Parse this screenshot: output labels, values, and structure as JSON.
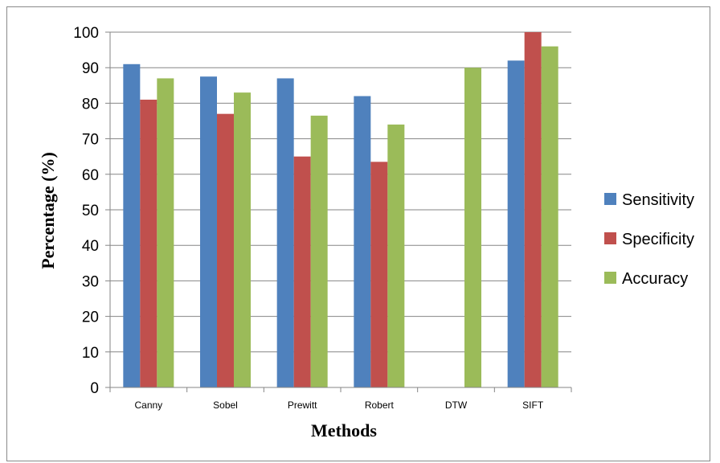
{
  "chart_data": {
    "type": "bar",
    "title": "",
    "xlabel": "Methods",
    "ylabel": "Percentage (%)",
    "ylim": [
      0,
      100
    ],
    "yticks": [
      0,
      10,
      20,
      30,
      40,
      50,
      60,
      70,
      80,
      90,
      100
    ],
    "grid": true,
    "legend_position": "right",
    "categories": [
      "Canny",
      "Sobel",
      "Prewitt",
      "Robert",
      "DTW",
      "SIFT"
    ],
    "series": [
      {
        "name": "Sensitivity",
        "color": "#4f81bd",
        "values": [
          91,
          87.5,
          87,
          82,
          null,
          92
        ]
      },
      {
        "name": "Specificity",
        "color": "#c0504d",
        "values": [
          81,
          77,
          65,
          63.5,
          null,
          100
        ]
      },
      {
        "name": "Accuracy",
        "color": "#9bbb59",
        "values": [
          87,
          83,
          76.5,
          74,
          90,
          96
        ]
      }
    ]
  }
}
